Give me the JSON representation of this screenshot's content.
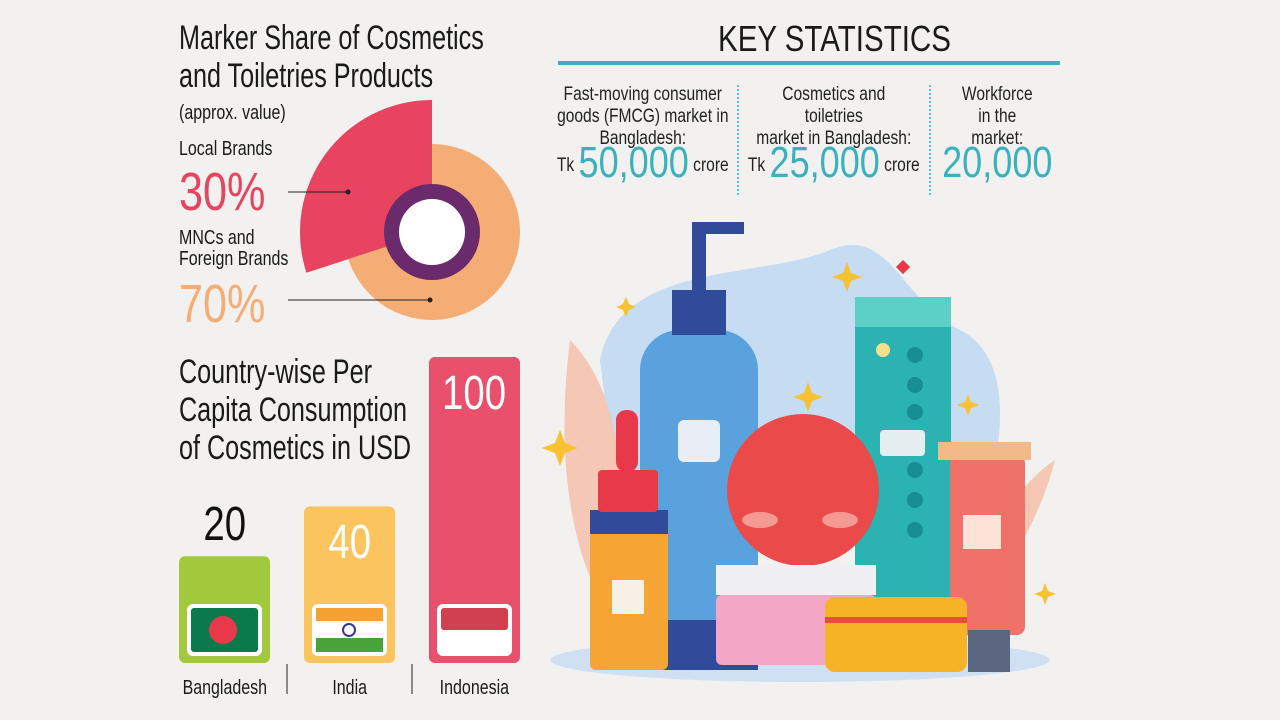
{
  "pie_section": {
    "title_line1": "Marker Share of Cosmetics",
    "title_line2": "and Toiletries Products",
    "subtitle": "(approx. value)"
  },
  "bar_section": {
    "title_line1": "Country-wise Per",
    "title_line2": "Capita Consumption",
    "title_line3": "of Cosmetics in USD"
  },
  "key_stats": {
    "title": "KEY STATISTICS",
    "items": [
      {
        "label_lines": [
          "Fast-moving consumer",
          "goods (FMCG) market in",
          "Bangladesh:"
        ],
        "prefix": "Tk",
        "value": "50,000",
        "suffix": "crore"
      },
      {
        "label_lines": [
          "Cosmetics and",
          "toiletries",
          "market in Bangladesh:"
        ],
        "prefix": "Tk",
        "value": "25,000",
        "suffix": "crore"
      },
      {
        "label_lines": [
          "Workforce",
          "in the",
          "market:"
        ],
        "prefix": "",
        "value": "20,000",
        "suffix": ""
      }
    ],
    "accent": "#3ab1bb"
  },
  "chart_data": [
    {
      "type": "pie",
      "title": "Marker Share of Cosmetics and Toiletries Products",
      "subtitle": "(approx. value)",
      "slices": [
        {
          "label": "Local Brands",
          "value": 30,
          "display": "30%",
          "color": "#e8445f"
        },
        {
          "label": "MNCs and Foreign Brands",
          "value": 70,
          "display": "70%",
          "color": "#f4ad75"
        }
      ]
    },
    {
      "type": "bar",
      "title": "Country-wise Per Capita Consumption of Cosmetics in USD",
      "categories": [
        "Bangladesh",
        "India",
        "Indonesia"
      ],
      "values": [
        20,
        40,
        100
      ],
      "labels": [
        "20",
        "40",
        "100"
      ],
      "colors": [
        "#a2c83c",
        "#fbc45e",
        "#e8506c"
      ]
    }
  ]
}
